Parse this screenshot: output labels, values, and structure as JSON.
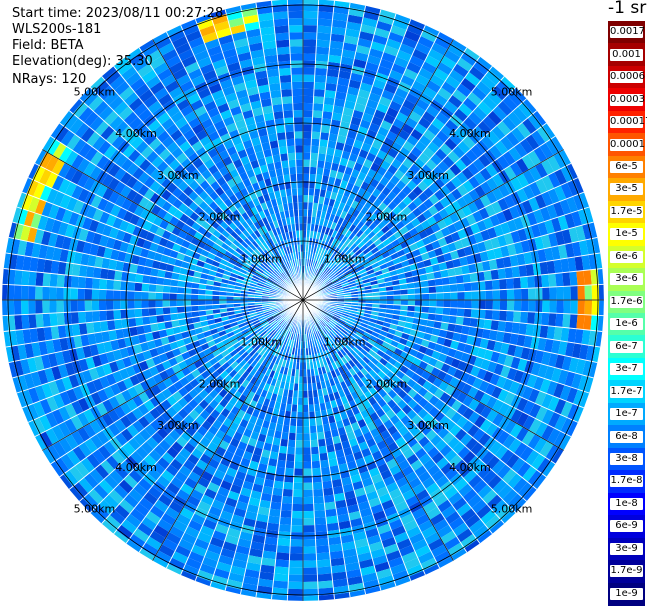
{
  "info": {
    "start_time": "Start time: 2023/08/11 00:27:28",
    "instrument": "WLS200s-181",
    "field": "Field: BETA",
    "elevation": "Elevation(deg): 35.30",
    "nrays": "NRays: 120"
  },
  "colorbar": {
    "title": "-1 sr",
    "labels": [
      "0.0017",
      "0.001",
      "0.0006",
      "0.0003",
      "0.00017",
      "0.0001",
      "6e-5",
      "3e-5",
      "1.7e-5",
      "1e-5",
      "6e-6",
      "3e-6",
      "1.7e-6",
      "1e-6",
      "6e-7",
      "3e-7",
      "1.7e-7",
      "1e-7",
      "6e-8",
      "3e-8",
      "1.7e-8",
      "1e-8",
      "6e-9",
      "3e-9",
      "1.7e-9",
      "1e-9"
    ],
    "colors": [
      "#7f0000",
      "#a50000",
      "#cc0000",
      "#ee0000",
      "#ff2200",
      "#ff5500",
      "#ff8000",
      "#ffaa00",
      "#ffd400",
      "#ffff00",
      "#d4ff2b",
      "#aaff55",
      "#80ff80",
      "#55ffaa",
      "#2bffd4",
      "#00ffff",
      "#00d4ff",
      "#00aaff",
      "#0080ff",
      "#0055ff",
      "#002bff",
      "#0000ff",
      "#0000dd",
      "#0000bb",
      "#00009a",
      "#000080"
    ]
  },
  "chart_data": {
    "type": "heatmap",
    "projection": "polar (PPI scan)",
    "field": "BETA",
    "units": "-1 sr",
    "rays": 120,
    "elevation_deg": 35.3,
    "range_rings_km": [
      1.0,
      2.0,
      3.0,
      4.0,
      5.0
    ],
    "ring_labels": [
      "1.00km",
      "2.00km",
      "3.00km",
      "4.00km",
      "5.00km"
    ],
    "max_range_km": 5.1,
    "background_level": "1e-8 to 6e-8",
    "enhanced_band": {
      "range_km": 4.8,
      "approx_value": "1.7e-5 to 1e-4",
      "azimuth_sectors_deg": [
        [
          282,
          302
        ],
        [
          338,
          352
        ],
        [
          83,
          97
        ]
      ]
    }
  }
}
